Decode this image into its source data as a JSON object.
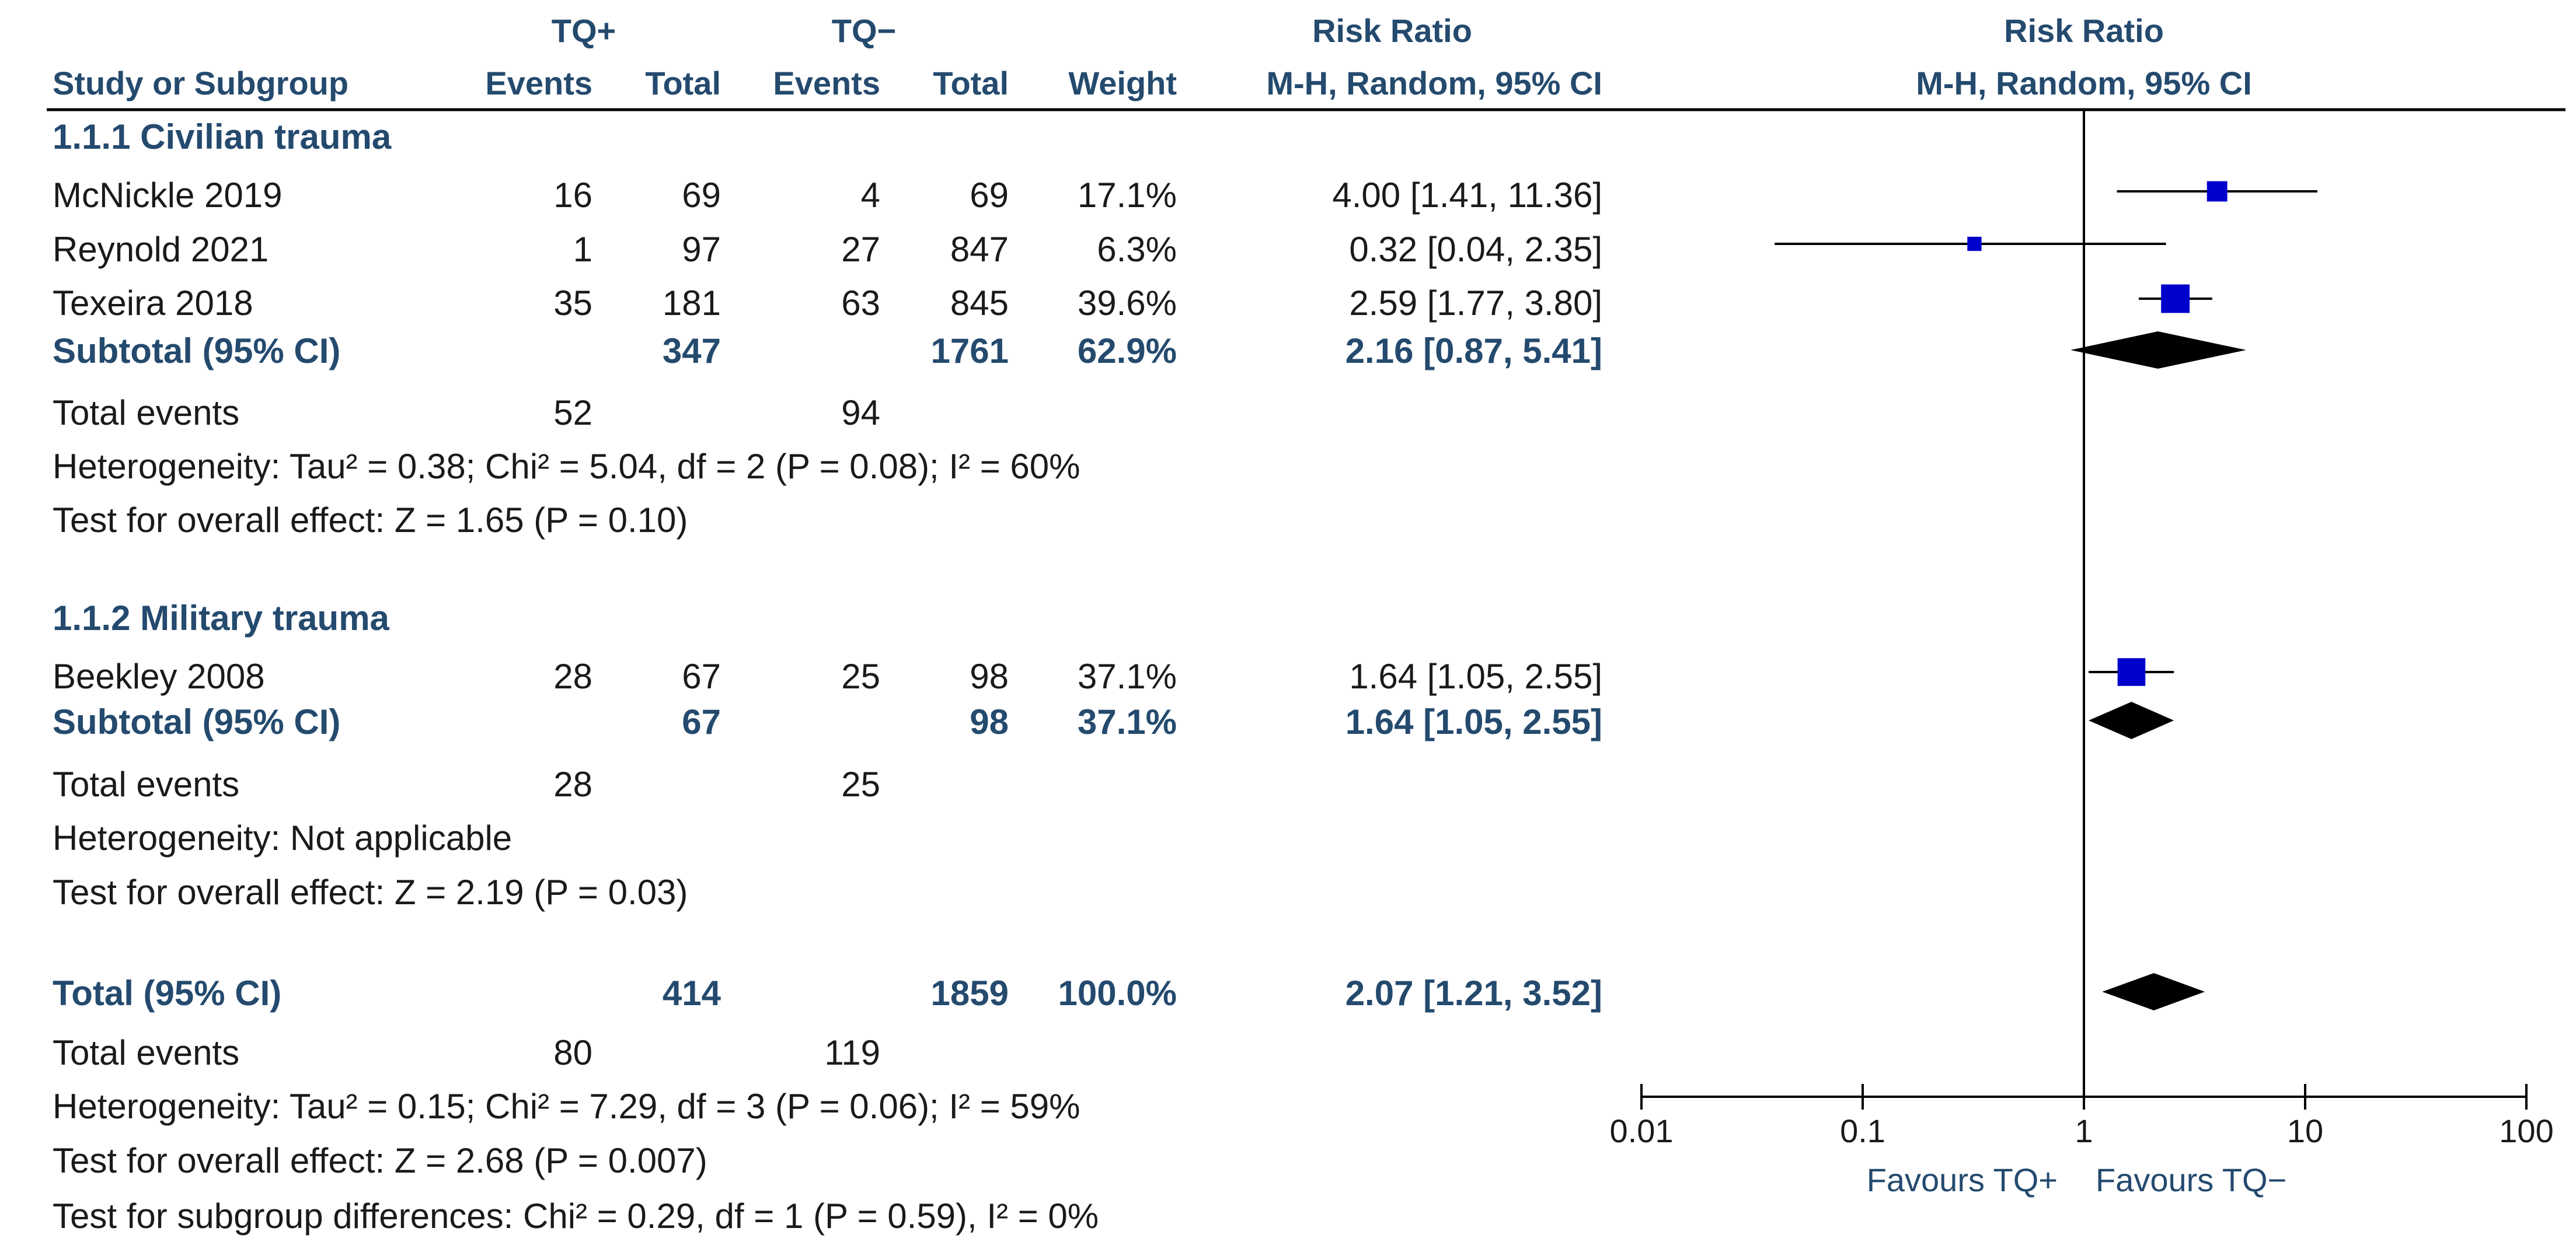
{
  "chart_data": {
    "type": "forest",
    "title": "Risk Ratio",
    "method": "M-H, Random, 95% CI",
    "headers": {
      "group_a": "TQ+",
      "group_b": "TQ−",
      "study": "Study or Subgroup",
      "events": "Events",
      "total": "Total",
      "weight": "Weight",
      "rr_title": "Risk Ratio",
      "rr_method": "M-H, Random, 95% CI",
      "plot_title": "Risk Ratio",
      "plot_method": "M-H, Random, 95% CI"
    },
    "subgroups": [
      {
        "name": "1.1.1 Civilian trauma",
        "studies": [
          {
            "name": "McNickle 2019",
            "a_events": "16",
            "a_total": "69",
            "b_events": "4",
            "b_total": "69",
            "weight": "17.1%",
            "ci_text": "4.00 [1.41, 11.36]",
            "rr": 4.0,
            "lo": 1.41,
            "hi": 11.36,
            "w": 17.1
          },
          {
            "name": "Reynold 2021",
            "a_events": "1",
            "a_total": "97",
            "b_events": "27",
            "b_total": "847",
            "weight": "6.3%",
            "ci_text": "0.32 [0.04, 2.35]",
            "rr": 0.32,
            "lo": 0.04,
            "hi": 2.35,
            "w": 6.3
          },
          {
            "name": "Texeira 2018",
            "a_events": "35",
            "a_total": "181",
            "b_events": "63",
            "b_total": "845",
            "weight": "39.6%",
            "ci_text": "2.59 [1.77, 3.80]",
            "rr": 2.59,
            "lo": 1.77,
            "hi": 3.8,
            "w": 39.6
          }
        ],
        "subtotal": {
          "label": "Subtotal (95% CI)",
          "a_total": "347",
          "b_total": "1761",
          "weight": "62.9%",
          "ci_text": "2.16 [0.87, 5.41]",
          "rr": 2.16,
          "lo": 0.87,
          "hi": 5.41
        },
        "events_label": "Total events",
        "a_events_total": "52",
        "b_events_total": "94",
        "heterogeneity": "Heterogeneity: Tau² = 0.38; Chi² = 5.04, df = 2 (P = 0.08); I² = 60%",
        "overall_effect": "Test for overall effect: Z = 1.65 (P = 0.10)"
      },
      {
        "name": "1.1.2 Military trauma",
        "studies": [
          {
            "name": "Beekley 2008",
            "a_events": "28",
            "a_total": "67",
            "b_events": "25",
            "b_total": "98",
            "weight": "37.1%",
            "ci_text": "1.64 [1.05, 2.55]",
            "rr": 1.64,
            "lo": 1.05,
            "hi": 2.55,
            "w": 37.1
          }
        ],
        "subtotal": {
          "label": "Subtotal (95% CI)",
          "a_total": "67",
          "b_total": "98",
          "weight": "37.1%",
          "ci_text": "1.64 [1.05, 2.55]",
          "rr": 1.64,
          "lo": 1.05,
          "hi": 2.55
        },
        "events_label": "Total events",
        "a_events_total": "28",
        "b_events_total": "25",
        "heterogeneity": "Heterogeneity: Not applicable",
        "overall_effect": "Test for overall effect: Z = 2.19 (P = 0.03)"
      }
    ],
    "total": {
      "label": "Total (95% CI)",
      "a_total": "414",
      "b_total": "1859",
      "weight": "100.0%",
      "ci_text": "2.07 [1.21, 3.52]",
      "rr": 2.07,
      "lo": 1.21,
      "hi": 3.52,
      "events_label": "Total events",
      "a_events_total": "80",
      "b_events_total": "119",
      "heterogeneity": "Heterogeneity: Tau² = 0.15; Chi² = 7.29, df = 3 (P = 0.06); I² = 59%",
      "overall_effect": "Test for overall effect: Z = 2.68 (P = 0.007)",
      "subgroup_diff": "Test for subgroup differences: Chi² = 0.29, df = 1 (P = 0.59), I² = 0%"
    },
    "axis": {
      "scale": "log",
      "ticks": [
        0.01,
        0.1,
        1,
        10,
        100
      ],
      "tick_labels": [
        "0.01",
        "0.1",
        "1",
        "10",
        "100"
      ],
      "favours_left": "Favours TQ+",
      "favours_right": "Favours TQ−"
    },
    "colors": {
      "marker": "#0000cc",
      "diamond": "#000000",
      "header": "#244a6e",
      "line": "#000000"
    }
  }
}
